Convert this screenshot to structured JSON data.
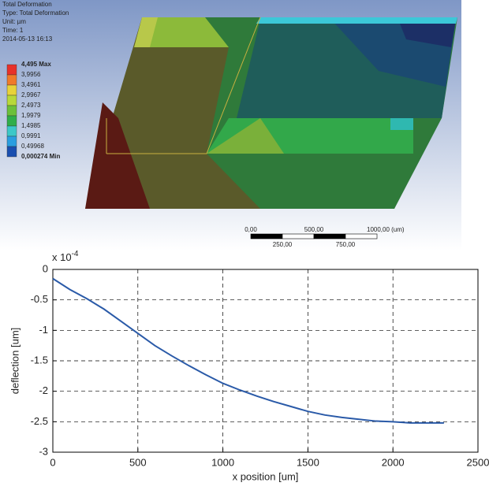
{
  "ansys": {
    "title": "Total Deformation",
    "type_line": "Type: Total Deformation",
    "unit_line": "Unit: µm",
    "time_line": "Time: 1",
    "date_line": "2014-05-13 16:13",
    "legend_labels": [
      "4,495 Max",
      "3,9956",
      "3,4961",
      "2,9967",
      "2,4973",
      "1,9979",
      "1,4985",
      "0,9991",
      "0,49968",
      "0,000274 Min"
    ],
    "legend_colors": [
      "#e8312a",
      "#f07a2a",
      "#e8d23a",
      "#b8d83a",
      "#6cc03a",
      "#2fae4a",
      "#3cc8c8",
      "#2a9ee0",
      "#1a4fb0"
    ],
    "scale_top": [
      "0,00",
      "500,00",
      "1000,00 (um)"
    ],
    "scale_bottom": [
      "250,00",
      "750,00"
    ]
  },
  "chart_data": {
    "type": "line",
    "xlabel": "x position [um]",
    "ylabel": "deflection [um]",
    "y_exponent": {
      "base": "x 10",
      "power": "-4"
    },
    "x": [
      0,
      100,
      200,
      300,
      400,
      500,
      600,
      700,
      800,
      900,
      1000,
      1100,
      1200,
      1300,
      1400,
      1500,
      1600,
      1700,
      1800,
      1900,
      2000,
      2100,
      2200,
      2300
    ],
    "series": [
      {
        "color": "#2a5aa8",
        "values": [
          -0.15,
          -0.33,
          -0.48,
          -0.65,
          -0.85,
          -1.05,
          -1.25,
          -1.42,
          -1.58,
          -1.73,
          -1.87,
          -1.98,
          -2.08,
          -2.17,
          -2.25,
          -2.33,
          -2.39,
          -2.43,
          -2.46,
          -2.49,
          -2.5,
          -2.52,
          -2.52,
          -2.52
        ]
      }
    ],
    "xlim": [
      0,
      2500
    ],
    "xticks": [
      0,
      500,
      1000,
      1500,
      2000,
      2500
    ],
    "ylim": [
      -3,
      0
    ],
    "yticks": [
      0,
      -0.5,
      -1,
      -1.5,
      -2,
      -2.5,
      -3
    ],
    "grid": true
  }
}
